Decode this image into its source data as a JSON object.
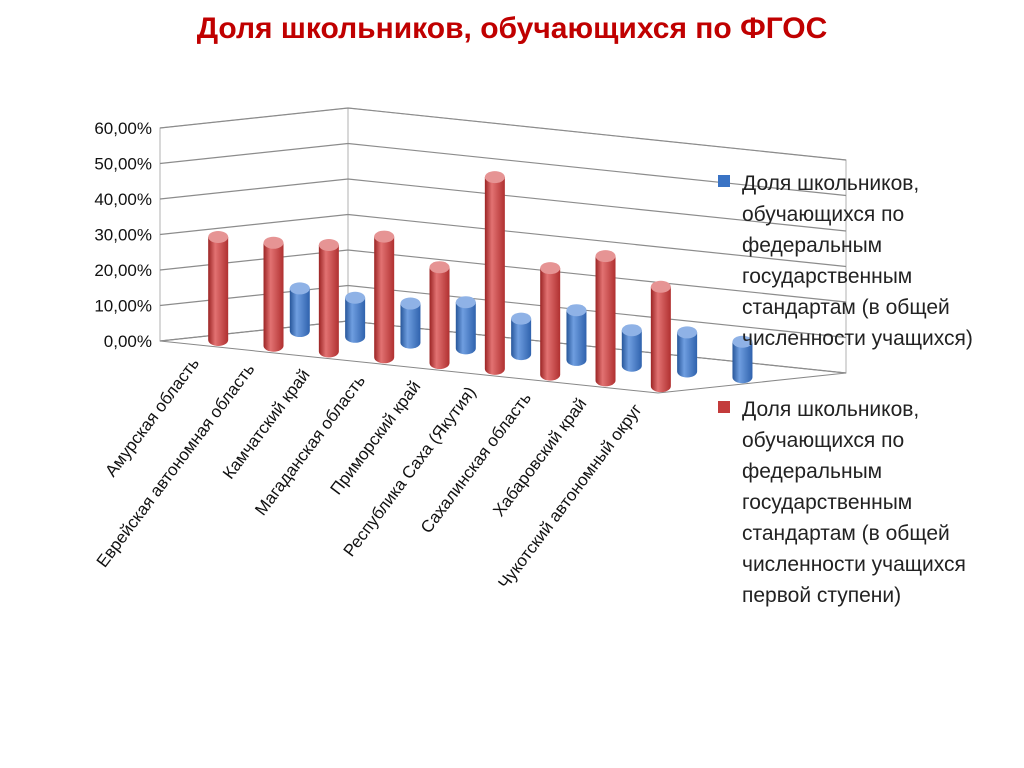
{
  "title": "Доля школьников, обучающихся по ФГОС",
  "colors": {
    "title": "#c00000",
    "series1": "#3a73c4",
    "series2": "#c33b3b"
  },
  "chart_data": {
    "type": "bar",
    "subtype": "3d-cylinder-clustered",
    "title": "Доля школьников, обучающихся по ФГОС",
    "categories": [
      "Амурская область",
      "Еврейская автономная область",
      "Камчатский край",
      "Магаданская область",
      "Приморский край",
      "Республика Саха (Якутия)",
      "Сахалинская область",
      "Хабаровский край",
      "Чукотский автономный округ"
    ],
    "series": [
      {
        "name": "Доля школьников, обучающихся по федеральным государственным стандартам (в общей численности учащихся)",
        "color": "#3a73c4",
        "values": [
          12,
          11,
          11,
          13,
          10,
          14,
          10,
          11,
          10
        ]
      },
      {
        "name": "Доля школьников, обучающихся по федеральным государственным стандартам (в общей численности учащихся первой ступени)",
        "color": "#c33b3b",
        "values": [
          29,
          29,
          30,
          34,
          27,
          54,
          30,
          35,
          28
        ]
      }
    ],
    "yticks": [
      "0,00%",
      "10,00%",
      "20,00%",
      "30,00%",
      "40,00%",
      "50,00%",
      "60,00%"
    ],
    "ylim": [
      0,
      60
    ],
    "grid": true,
    "legend_position": "right"
  }
}
